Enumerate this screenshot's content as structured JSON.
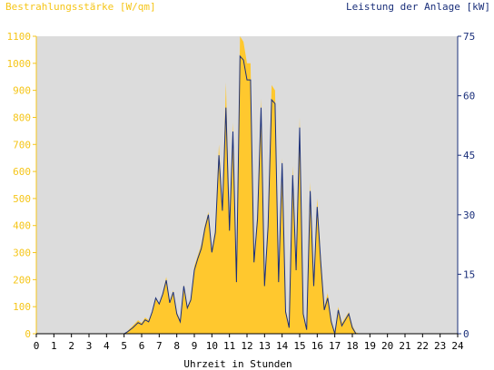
{
  "colors": {
    "left_axis": "#f5c518",
    "right_axis": "#1a2f7a",
    "plot_bg": "#dcdcdc",
    "area_fill": "#ffc82e",
    "power_line": "#1a2f7a",
    "bottom_axis": "#000000"
  },
  "chart_data": {
    "type": "area",
    "left_axis_title": "Bestrahlungsstärke [W/qm]",
    "right_axis_title": "Leistung der Anlage [kW]",
    "xlabel": "Uhrzeit in Stunden",
    "xlim": [
      0,
      24
    ],
    "ylim_left": [
      0,
      1100
    ],
    "ylim_right": [
      0,
      75
    ],
    "x_ticks": [
      "0",
      "1",
      "2",
      "3",
      "4",
      "5",
      "6",
      "7",
      "8",
      "9",
      "10",
      "11",
      "12",
      "13",
      "14",
      "15",
      "16",
      "17",
      "18",
      "19",
      "20",
      "21",
      "22",
      "23",
      "24"
    ],
    "y_left_ticks": [
      "0",
      "100",
      "200",
      "300",
      "400",
      "500",
      "600",
      "700",
      "800",
      "900",
      "1000",
      "1100"
    ],
    "y_right_ticks": [
      "0",
      "15",
      "30",
      "45",
      "60",
      "75"
    ],
    "grid": false,
    "series": [
      {
        "name": "Bestrahlungsstärke [W/qm]",
        "axis": "left",
        "style": "area",
        "x": [
          0,
          5,
          5.2,
          5.5,
          5.8,
          6,
          6.2,
          6.4,
          6.6,
          6.8,
          7,
          7.2,
          7.4,
          7.6,
          7.8,
          8,
          8.2,
          8.4,
          8.6,
          8.8,
          9,
          9.2,
          9.4,
          9.6,
          9.8,
          10,
          10.2,
          10.4,
          10.6,
          10.8,
          11,
          11.2,
          11.4,
          11.6,
          11.8,
          12,
          12.2,
          12.4,
          12.6,
          12.8,
          13,
          13.2,
          13.4,
          13.6,
          13.8,
          14,
          14.2,
          14.4,
          14.6,
          14.8,
          15,
          15.2,
          15.4,
          15.6,
          15.8,
          16,
          16.2,
          16.4,
          16.6,
          16.8,
          17,
          17.2,
          17.4,
          17.6,
          17.8,
          18,
          18.2,
          18.4,
          18.6,
          18.8,
          19,
          19.2,
          19.4,
          19.6,
          19.8,
          20,
          24
        ],
        "values": [
          0,
          0,
          10,
          30,
          50,
          40,
          60,
          50,
          80,
          130,
          110,
          150,
          210,
          120,
          160,
          80,
          50,
          180,
          100,
          130,
          250,
          290,
          330,
          400,
          450,
          310,
          390,
          700,
          470,
          930,
          400,
          780,
          200,
          1100,
          1080,
          1000,
          1000,
          280,
          450,
          870,
          190,
          420,
          920,
          900,
          200,
          650,
          90,
          30,
          620,
          250,
          800,
          80,
          20,
          560,
          200,
          500,
          290,
          100,
          150,
          50,
          0,
          100,
          40,
          60,
          80,
          30,
          5,
          0,
          0,
          0,
          0,
          0,
          0,
          0,
          0,
          0,
          0
        ]
      },
      {
        "name": "Leistung der Anlage [kW]",
        "axis": "right",
        "style": "line",
        "x": [
          0,
          5,
          5.2,
          5.5,
          5.8,
          6,
          6.2,
          6.4,
          6.6,
          6.8,
          7,
          7.2,
          7.4,
          7.6,
          7.8,
          8,
          8.2,
          8.4,
          8.6,
          8.8,
          9,
          9.2,
          9.4,
          9.6,
          9.8,
          10,
          10.2,
          10.4,
          10.6,
          10.8,
          11,
          11.2,
          11.4,
          11.6,
          11.8,
          12,
          12.2,
          12.4,
          12.6,
          12.8,
          13,
          13.2,
          13.4,
          13.6,
          13.8,
          14,
          14.2,
          14.4,
          14.6,
          14.8,
          15,
          15.2,
          15.4,
          15.6,
          15.8,
          16,
          16.2,
          16.4,
          16.6,
          16.8,
          17,
          17.2,
          17.4,
          17.6,
          17.8,
          18,
          18.2,
          18.4,
          18.6,
          18.8,
          19,
          19.2,
          19.4,
          19.6,
          19.8,
          20,
          24
        ],
        "values": [
          0,
          0,
          0.5,
          1.5,
          2.8,
          2.3,
          3.5,
          3,
          5.5,
          9,
          7.5,
          10,
          13.5,
          7.8,
          10.5,
          5,
          3,
          12,
          6.5,
          8.5,
          16,
          19,
          21.5,
          26.5,
          30,
          20.5,
          25.5,
          45,
          31,
          57,
          26,
          51,
          13,
          70,
          69,
          64,
          64,
          18,
          29,
          57,
          12,
          27,
          59,
          58,
          13,
          43,
          5.5,
          1.5,
          40,
          16,
          52,
          5,
          1,
          36,
          12,
          32,
          18,
          6,
          9,
          3,
          0,
          6,
          2,
          3.5,
          5,
          1.5,
          0,
          0,
          0,
          0,
          0,
          0,
          0,
          0,
          0,
          0,
          0
        ]
      }
    ]
  }
}
